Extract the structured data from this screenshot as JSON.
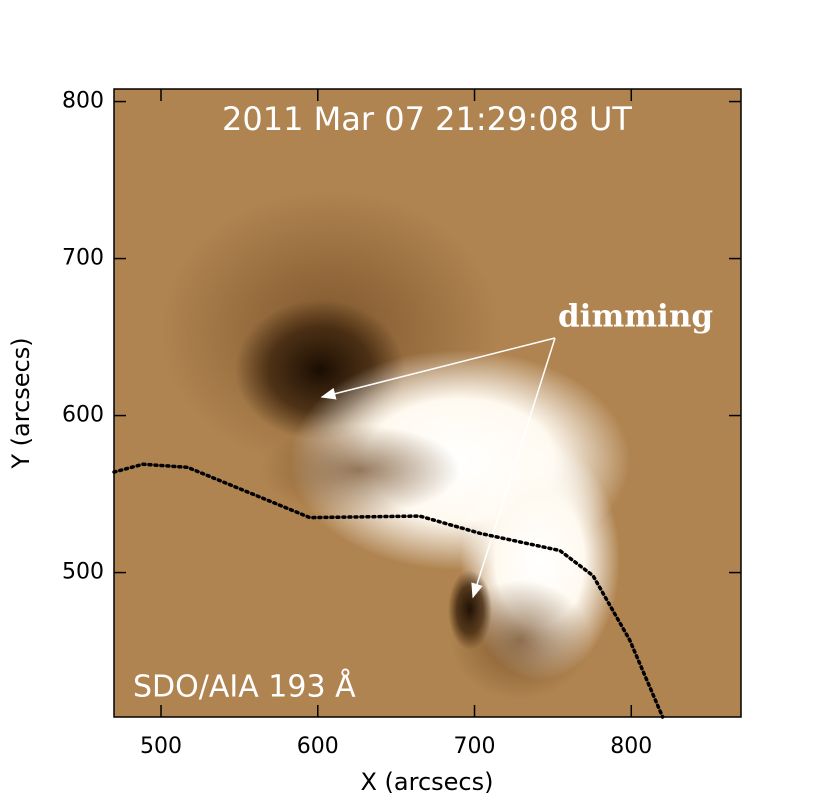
{
  "chart_data": {
    "type": "image",
    "annotations": [
      "2011 Mar 07 21:29:08 UT",
      "SDO/AIA 193 Å",
      "dimming"
    ],
    "xlabel": "X (arcsecs)",
    "ylabel": "Y (arcsecs)",
    "xlim": [
      470,
      870
    ],
    "ylim": [
      408,
      808
    ],
    "xticks": [
      500,
      600,
      700,
      800
    ],
    "yticks": [
      500,
      600,
      700,
      800
    ],
    "line": {
      "color": "#000000",
      "x": [
        470,
        488.5,
        517,
        595,
        665,
        703.5,
        754.5,
        775.6,
        799,
        820
      ],
      "y": [
        564,
        569,
        567,
        535,
        536,
        525,
        514,
        498,
        457,
        408
      ]
    }
  }
}
